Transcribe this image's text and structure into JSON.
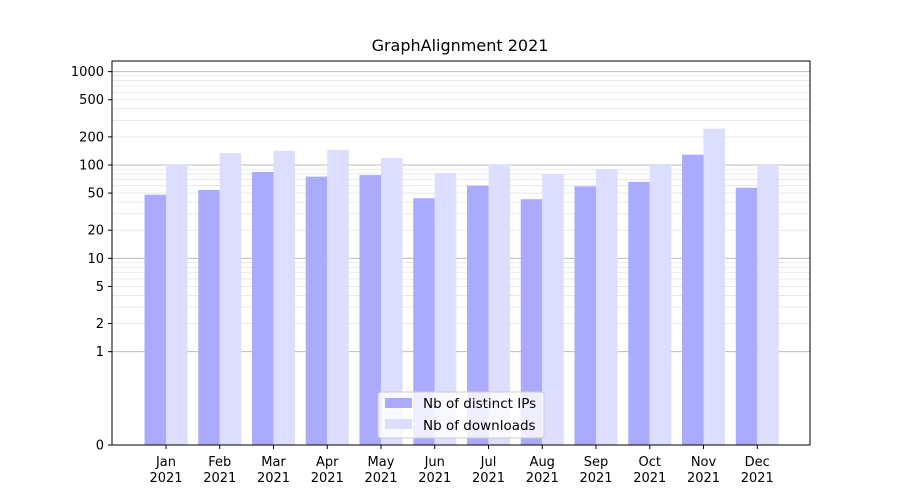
{
  "chart_data": {
    "type": "bar",
    "title": "GraphAlignment 2021",
    "xlabel": "",
    "ylabel": "",
    "y_scale": "symlog",
    "ylim": [
      0,
      1300
    ],
    "y_ticks": [
      0,
      1,
      2,
      5,
      10,
      20,
      50,
      100,
      200,
      500,
      1000
    ],
    "categories": [
      [
        "Jan",
        "2021"
      ],
      [
        "Feb",
        "2021"
      ],
      [
        "Mar",
        "2021"
      ],
      [
        "Apr",
        "2021"
      ],
      [
        "May",
        "2021"
      ],
      [
        "Jun",
        "2021"
      ],
      [
        "Jul",
        "2021"
      ],
      [
        "Aug",
        "2021"
      ],
      [
        "Sep",
        "2021"
      ],
      [
        "Oct",
        "2021"
      ],
      [
        "Nov",
        "2021"
      ],
      [
        "Dec",
        "2021"
      ]
    ],
    "series": [
      {
        "name": "Nb of distinct IPs",
        "color": "#aaaaff",
        "values": [
          48,
          54,
          84,
          75,
          78,
          44,
          60,
          43,
          59,
          66,
          129,
          57
        ]
      },
      {
        "name": "Nb of downloads",
        "color": "#ddddff",
        "values": [
          102,
          134,
          142,
          145,
          119,
          82,
          102,
          80,
          90,
          100,
          245,
          100
        ]
      }
    ],
    "grid": true,
    "legend_position": "lower-center"
  }
}
